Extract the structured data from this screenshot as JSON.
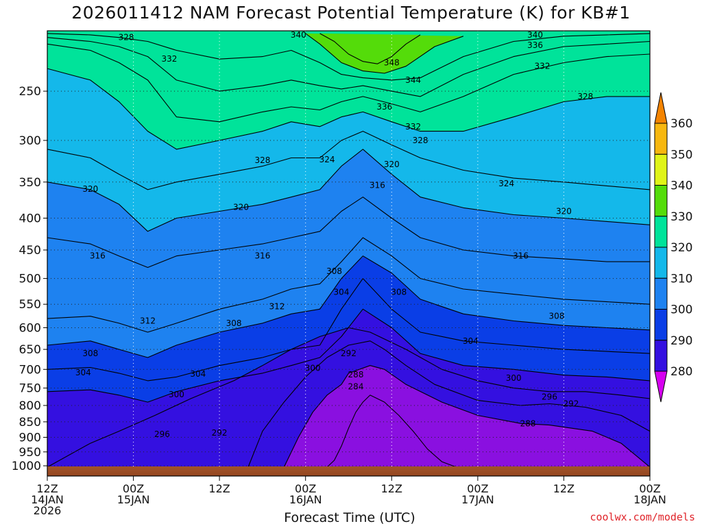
{
  "title": "2026011412 NAM Forecast Potential Temperature (K) for KB#1",
  "xlabel": "Forecast Time (UTC)",
  "credit": "coolwx.com/models",
  "chart_data": {
    "type": "contour",
    "title": "2026011412 NAM Forecast Potential Temperature (K) for KB#1",
    "xlabel": "Forecast Time (UTC)",
    "ylabel": "",
    "x_ticks": [
      {
        "hour": 0,
        "lines": [
          "12Z",
          "14JAN",
          "2026"
        ]
      },
      {
        "hour": 12,
        "lines": [
          "00Z",
          "15JAN"
        ]
      },
      {
        "hour": 24,
        "lines": [
          "12Z"
        ]
      },
      {
        "hour": 36,
        "lines": [
          "00Z",
          "16JAN"
        ]
      },
      {
        "hour": 48,
        "lines": [
          "12Z"
        ]
      },
      {
        "hour": 60,
        "lines": [
          "00Z",
          "17JAN"
        ]
      },
      {
        "hour": 72,
        "lines": [
          "12Z"
        ]
      },
      {
        "hour": 84,
        "lines": [
          "00Z",
          "18JAN"
        ]
      }
    ],
    "xlim": [
      0,
      84
    ],
    "y_ticks": [
      250,
      300,
      350,
      400,
      450,
      500,
      550,
      600,
      650,
      700,
      750,
      800,
      850,
      900,
      950,
      1000
    ],
    "ylim": [
      200,
      1010
    ],
    "y_scale": "log",
    "grid": true,
    "colorbar": {
      "levels": [
        280,
        290,
        300,
        310,
        320,
        330,
        340,
        350,
        360
      ],
      "colors": [
        "#d600f0",
        "#8a10e0",
        "#3410e0",
        "#0a3ee6",
        "#1e82f0",
        "#14b8ea",
        "#00e39a",
        "#54dc0a",
        "#e0f418",
        "#f7b70f",
        "#f48400"
      ],
      "extend": "both"
    },
    "isentropes": [
      {
        "theta": 284,
        "p": [
          1005,
          980,
          930,
          870,
          820,
          790,
          770,
          790,
          830,
          880,
          940,
          985,
          1005
        ],
        "h": [
          39,
          40,
          41,
          42,
          43,
          44,
          45,
          47,
          49,
          51,
          53,
          55,
          57
        ]
      },
      {
        "theta": 288,
        "p": [
          1005,
          900,
          820,
          770,
          740,
          710,
          690,
          700,
          740,
          790,
          830,
          855,
          860,
          880,
          920,
          1005
        ],
        "h": [
          33,
          35,
          37,
          39,
          41,
          42,
          45,
          47,
          50,
          55,
          60,
          66,
          70,
          76,
          80,
          84
        ]
      },
      {
        "theta": 292,
        "p": [
          1005,
          880,
          790,
          720,
          670,
          640,
          630,
          650,
          690,
          740,
          785,
          800,
          795,
          805,
          830,
          880
        ],
        "h": [
          28,
          30,
          33,
          36,
          39,
          42,
          45,
          47,
          50,
          54,
          60,
          66,
          70,
          75,
          80,
          84
        ]
      },
      {
        "theta": 296,
        "p": [
          1005,
          920,
          880,
          830,
          780,
          730,
          690,
          650,
          620,
          600,
          610,
          650,
          700,
          730,
          750,
          760,
          760,
          770,
          780
        ],
        "h": [
          0,
          6,
          10,
          15,
          20,
          26,
          30,
          34,
          38,
          42,
          45,
          50,
          55,
          60,
          65,
          70,
          75,
          80,
          84
        ]
      },
      {
        "theta": 300,
        "p": [
          760,
          755,
          770,
          790,
          760,
          730,
          710,
          690,
          670,
          620,
          560,
          600,
          660,
          690,
          700,
          715,
          720,
          730
        ],
        "h": [
          0,
          6,
          10,
          14,
          18,
          24,
          30,
          34,
          38,
          41,
          44,
          48,
          52,
          58,
          65,
          72,
          78,
          84
        ]
      },
      {
        "theta": 304,
        "p": [
          700,
          695,
          710,
          730,
          720,
          690,
          670,
          650,
          640,
          560,
          500,
          560,
          610,
          630,
          640,
          650,
          655,
          660
        ],
        "h": [
          0,
          6,
          10,
          14,
          18,
          24,
          30,
          34,
          38,
          41,
          44,
          48,
          52,
          58,
          65,
          72,
          78,
          84
        ]
      },
      {
        "theta": 308,
        "p": [
          640,
          630,
          650,
          670,
          640,
          610,
          590,
          570,
          560,
          500,
          460,
          490,
          540,
          570,
          585,
          595,
          600,
          605
        ],
        "h": [
          0,
          6,
          10,
          14,
          18,
          24,
          30,
          34,
          38,
          41,
          44,
          48,
          52,
          58,
          65,
          72,
          78,
          84
        ]
      },
      {
        "theta": 312,
        "p": [
          580,
          575,
          590,
          610,
          590,
          560,
          540,
          520,
          510,
          470,
          430,
          460,
          500,
          520,
          530,
          540,
          545,
          550
        ],
        "h": [
          0,
          6,
          10,
          14,
          18,
          24,
          30,
          34,
          38,
          41,
          44,
          48,
          52,
          58,
          65,
          72,
          78,
          84
        ]
      },
      {
        "theta": 316,
        "p": [
          430,
          440,
          460,
          480,
          460,
          450,
          440,
          430,
          420,
          390,
          370,
          400,
          430,
          450,
          460,
          465,
          470,
          470
        ],
        "h": [
          0,
          6,
          10,
          14,
          18,
          24,
          30,
          34,
          38,
          41,
          44,
          48,
          52,
          58,
          65,
          72,
          78,
          84
        ]
      },
      {
        "theta": 320,
        "p": [
          350,
          360,
          380,
          420,
          400,
          390,
          380,
          370,
          360,
          330,
          310,
          340,
          370,
          385,
          395,
          400,
          405,
          410
        ],
        "h": [
          0,
          6,
          10,
          14,
          18,
          24,
          30,
          34,
          38,
          41,
          44,
          48,
          52,
          58,
          65,
          72,
          78,
          84
        ]
      },
      {
        "theta": 324,
        "p": [
          310,
          320,
          340,
          360,
          350,
          340,
          330,
          320,
          320,
          300,
          290,
          305,
          320,
          335,
          345,
          350,
          355,
          360
        ],
        "h": [
          0,
          6,
          10,
          14,
          18,
          24,
          30,
          34,
          38,
          41,
          44,
          48,
          52,
          58,
          65,
          72,
          78,
          84
        ]
      },
      {
        "theta": 328,
        "p": [
          230,
          240,
          260,
          290,
          310,
          300,
          290,
          280,
          285,
          275,
          270,
          280,
          290,
          290,
          275,
          260,
          255,
          255
        ],
        "h": [
          0,
          6,
          10,
          14,
          18,
          24,
          30,
          34,
          38,
          41,
          44,
          48,
          52,
          58,
          65,
          72,
          78,
          84
        ]
      },
      {
        "theta": 332,
        "p": [
          210,
          215,
          225,
          240,
          275,
          280,
          270,
          265,
          268,
          260,
          255,
          262,
          270,
          255,
          235,
          225,
          220,
          218
        ],
        "h": [
          0,
          6,
          10,
          14,
          18,
          24,
          30,
          34,
          38,
          41,
          44,
          48,
          52,
          58,
          65,
          72,
          78,
          84
        ]
      },
      {
        "theta": 336,
        "p": [
          205,
          208,
          212,
          220,
          240,
          250,
          245,
          240,
          245,
          248,
          245,
          250,
          255,
          235,
          220,
          212,
          210,
          208
        ],
        "h": [
          0,
          6,
          10,
          14,
          18,
          24,
          30,
          34,
          38,
          41,
          44,
          48,
          52,
          58,
          65,
          72,
          78,
          84
        ]
      },
      {
        "theta": 340,
        "p": [
          202,
          203,
          205,
          208,
          215,
          222,
          220,
          215,
          225,
          235,
          238,
          240,
          238,
          220,
          208,
          204,
          203,
          202
        ],
        "h": [
          0,
          6,
          10,
          14,
          18,
          24,
          30,
          34,
          38,
          41,
          44,
          48,
          52,
          58,
          65,
          72,
          78,
          84
        ]
      },
      {
        "theta": 344,
        "p": [
          202,
          210,
          225,
          232,
          234,
          228,
          212,
          204
        ],
        "h": [
          36,
          38,
          41,
          44,
          47,
          50,
          54,
          58
        ]
      },
      {
        "theta": 348,
        "p": [
          202,
          208,
          218,
          224,
          226,
          220,
          210,
          203
        ],
        "h": [
          38,
          40,
          42,
          44,
          46,
          48,
          50,
          52
        ]
      }
    ],
    "contour_labels": [
      {
        "text": "328",
        "h": 11,
        "p": 205
      },
      {
        "text": "332",
        "h": 17,
        "p": 222
      },
      {
        "text": "340",
        "h": 35,
        "p": 203
      },
      {
        "text": "340",
        "h": 68,
        "p": 203
      },
      {
        "text": "336",
        "h": 68,
        "p": 211
      },
      {
        "text": "332",
        "h": 69,
        "p": 228
      },
      {
        "text": "348",
        "h": 48,
        "p": 225
      },
      {
        "text": "344",
        "h": 51,
        "p": 240
      },
      {
        "text": "336",
        "h": 47,
        "p": 265
      },
      {
        "text": "332",
        "h": 51,
        "p": 285
      },
      {
        "text": "328",
        "h": 52,
        "p": 300
      },
      {
        "text": "328",
        "h": 75,
        "p": 255
      },
      {
        "text": "328",
        "h": 30,
        "p": 323
      },
      {
        "text": "324",
        "h": 39,
        "p": 322
      },
      {
        "text": "320",
        "h": 48,
        "p": 328
      },
      {
        "text": "316",
        "h": 46,
        "p": 354
      },
      {
        "text": "324",
        "h": 64,
        "p": 352
      },
      {
        "text": "320",
        "h": 6,
        "p": 359
      },
      {
        "text": "320",
        "h": 27,
        "p": 384
      },
      {
        "text": "320",
        "h": 72,
        "p": 390
      },
      {
        "text": "316",
        "h": 7,
        "p": 460
      },
      {
        "text": "316",
        "h": 30,
        "p": 460
      },
      {
        "text": "316",
        "h": 66,
        "p": 460
      },
      {
        "text": "308",
        "h": 40,
        "p": 487
      },
      {
        "text": "304",
        "h": 41,
        "p": 526
      },
      {
        "text": "308",
        "h": 49,
        "p": 526
      },
      {
        "text": "312",
        "h": 32,
        "p": 555
      },
      {
        "text": "312",
        "h": 14,
        "p": 585
      },
      {
        "text": "308",
        "h": 26,
        "p": 590
      },
      {
        "text": "308",
        "h": 71,
        "p": 575
      },
      {
        "text": "304",
        "h": 59,
        "p": 630
      },
      {
        "text": "308",
        "h": 6,
        "p": 660
      },
      {
        "text": "292",
        "h": 42,
        "p": 660
      },
      {
        "text": "300",
        "h": 37,
        "p": 697
      },
      {
        "text": "288",
        "h": 43,
        "p": 714
      },
      {
        "text": "304",
        "h": 5,
        "p": 708
      },
      {
        "text": "304",
        "h": 21,
        "p": 712
      },
      {
        "text": "300",
        "h": 65,
        "p": 723
      },
      {
        "text": "284",
        "h": 43,
        "p": 746
      },
      {
        "text": "300",
        "h": 18,
        "p": 768
      },
      {
        "text": "296",
        "h": 70,
        "p": 775
      },
      {
        "text": "292",
        "h": 73,
        "p": 795
      },
      {
        "text": "288",
        "h": 67,
        "p": 855
      },
      {
        "text": "296",
        "h": 16,
        "p": 890
      },
      {
        "text": "292",
        "h": 24,
        "p": 885
      }
    ]
  }
}
